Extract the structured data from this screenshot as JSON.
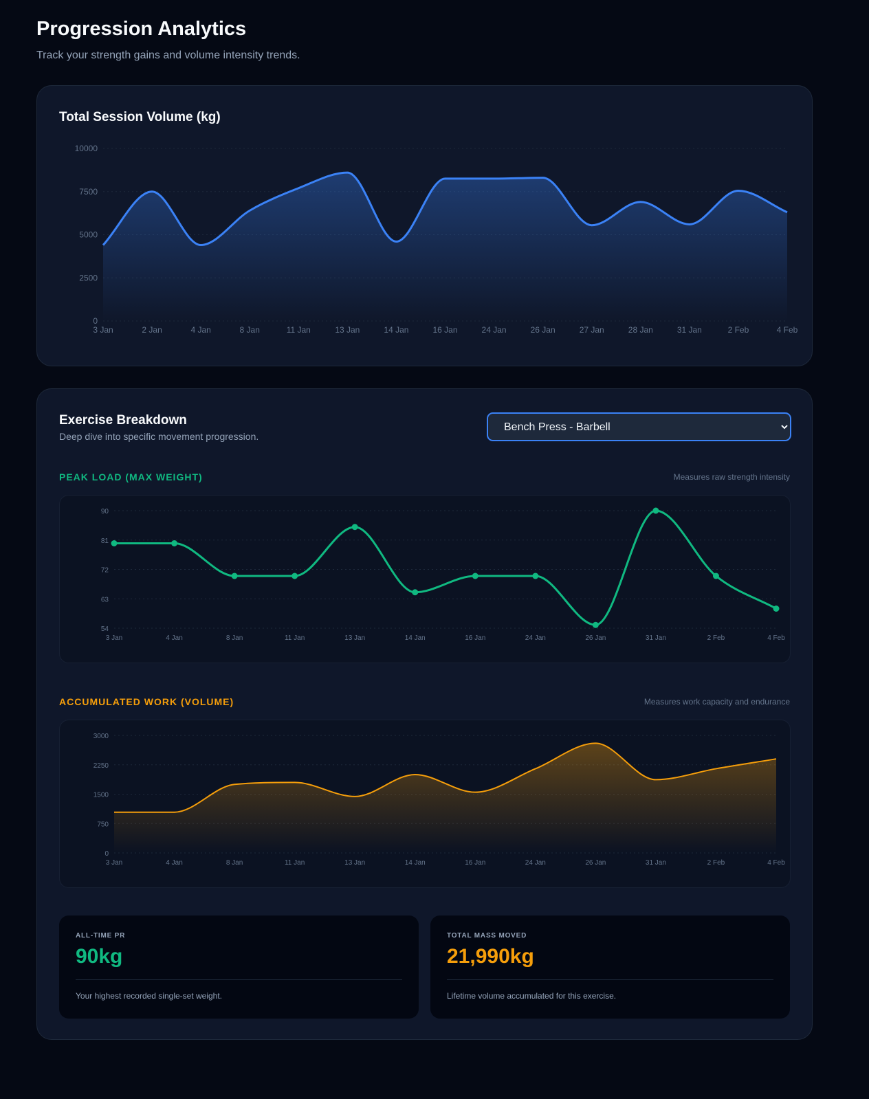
{
  "header": {
    "title": "Progression Analytics",
    "subtitle": "Track your strength gains and volume intensity trends."
  },
  "colors": {
    "blue": "#3b82f6",
    "green": "#10b981",
    "orange": "#f59e0b"
  },
  "session_card": {
    "title": "Total Session Volume (kg)"
  },
  "breakdown": {
    "title": "Exercise Breakdown",
    "subtitle": "Deep dive into specific movement progression.",
    "exercise_select": {
      "selected": "Bench Press - Barbell",
      "icon": "chevron-down-icon"
    },
    "peak": {
      "label": "PEAK LOAD (MAX WEIGHT)",
      "note": "Measures raw strength intensity"
    },
    "work": {
      "label": "ACCUMULATED WORK (VOLUME)",
      "note": "Measures work capacity and endurance"
    }
  },
  "stats": [
    {
      "label": "ALL-TIME PR",
      "value": "90kg",
      "desc": "Your highest recorded single-set weight."
    },
    {
      "label": "TOTAL MASS MOVED",
      "value": "21,990kg",
      "desc": "Lifetime volume accumulated for this exercise."
    }
  ],
  "chart_data": [
    {
      "type": "area",
      "categories": [
        "3 Jan",
        "2 Jan",
        "4 Jan",
        "8 Jan",
        "11 Jan",
        "13 Jan",
        "14 Jan",
        "16 Jan",
        "24 Jan",
        "26 Jan",
        "27 Jan",
        "28 Jan",
        "31 Jan",
        "2 Feb",
        "4 Feb"
      ],
      "values": [
        4400,
        7500,
        4400,
        6400,
        7700,
        8600,
        4600,
        8250,
        8250,
        8300,
        5550,
        6900,
        5600,
        7550,
        6300
      ],
      "ylim": [
        0,
        10000
      ],
      "yticks": [
        0,
        2500,
        5000,
        7500,
        10000
      ],
      "grid": true,
      "color": "#3b82f6"
    },
    {
      "type": "line",
      "categories": [
        "3 Jan",
        "4 Jan",
        "8 Jan",
        "11 Jan",
        "13 Jan",
        "14 Jan",
        "16 Jan",
        "24 Jan",
        "26 Jan",
        "31 Jan",
        "2 Feb",
        "4 Feb"
      ],
      "values": [
        80,
        80,
        70,
        70,
        85,
        65,
        70,
        70,
        55,
        90,
        70,
        60
      ],
      "ylim": [
        54,
        90
      ],
      "yticks": [
        54,
        63,
        72,
        81,
        90
      ],
      "grid": true,
      "markers": true,
      "color": "#10b981"
    },
    {
      "type": "area",
      "categories": [
        "3 Jan",
        "4 Jan",
        "8 Jan",
        "11 Jan",
        "13 Jan",
        "14 Jan",
        "16 Jan",
        "24 Jan",
        "26 Jan",
        "31 Jan",
        "2 Feb",
        "4 Feb"
      ],
      "values": [
        1040,
        1040,
        1750,
        1800,
        1440,
        2000,
        1550,
        2150,
        2800,
        1870,
        2150,
        2400
      ],
      "ylim": [
        0,
        3000
      ],
      "yticks": [
        0,
        750,
        1500,
        2250,
        3000
      ],
      "grid": true,
      "color": "#f59e0b"
    }
  ]
}
